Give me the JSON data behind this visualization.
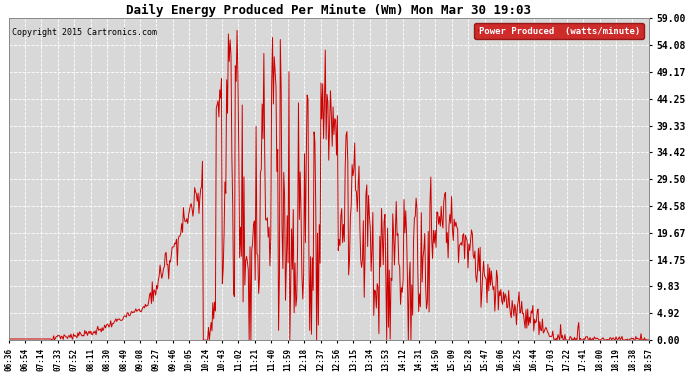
{
  "title": "Daily Energy Produced Per Minute (Wm) Mon Mar 30 19:03",
  "copyright": "Copyright 2015 Cartronics.com",
  "legend_label": "Power Produced  (watts/minute)",
  "legend_bg": "#cc0000",
  "legend_fg": "#ffffff",
  "line_color": "#cc0000",
  "bg_color": "#ffffff",
  "plot_bg_color": "#d8d8d8",
  "grid_color": "#ffffff",
  "yticks": [
    0.0,
    4.92,
    9.83,
    14.75,
    19.67,
    24.58,
    29.5,
    34.42,
    39.33,
    44.25,
    49.17,
    54.08,
    59.0
  ],
  "ylim": [
    0,
    59.0
  ],
  "xtick_labels": [
    "06:36",
    "06:54",
    "07:14",
    "07:33",
    "07:52",
    "08:11",
    "08:30",
    "08:49",
    "09:08",
    "09:27",
    "09:46",
    "10:05",
    "10:24",
    "10:43",
    "11:02",
    "11:21",
    "11:40",
    "11:59",
    "12:18",
    "12:37",
    "12:56",
    "13:15",
    "13:34",
    "13:53",
    "14:12",
    "14:31",
    "14:50",
    "15:09",
    "15:28",
    "15:47",
    "16:06",
    "16:25",
    "16:44",
    "17:03",
    "17:22",
    "17:41",
    "18:00",
    "18:19",
    "18:38",
    "18:57"
  ],
  "figsize": [
    6.9,
    3.75
  ],
  "dpi": 100
}
